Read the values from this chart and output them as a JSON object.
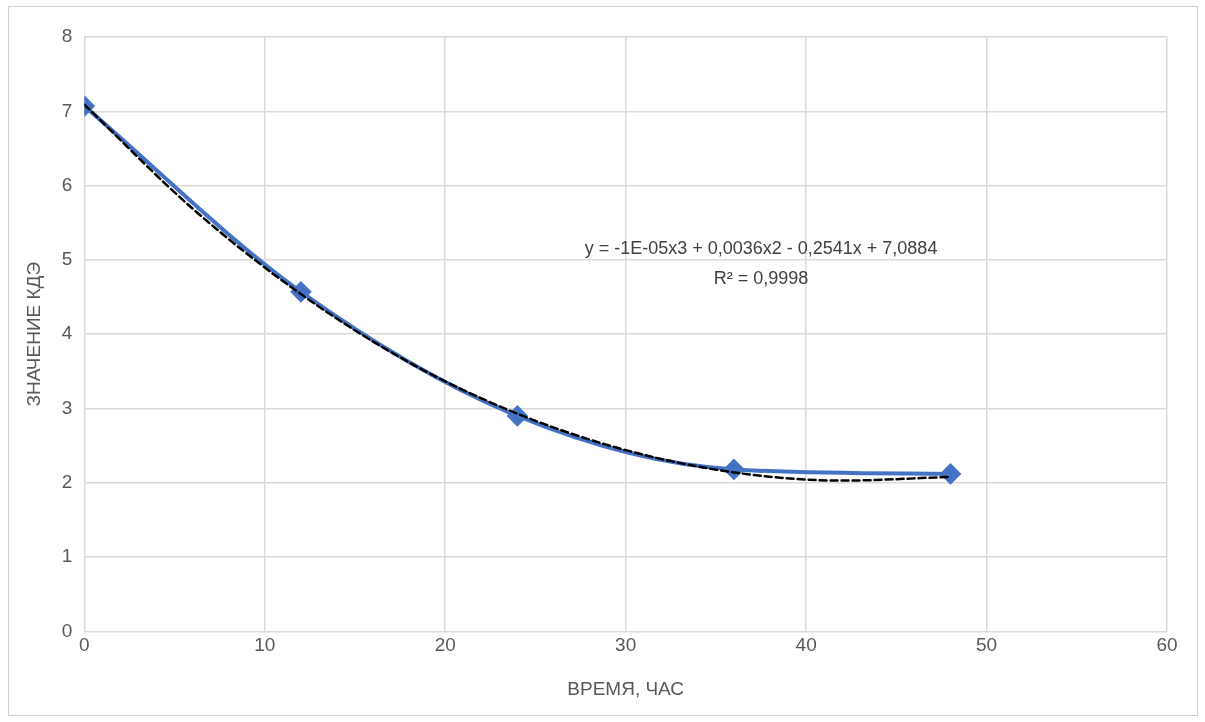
{
  "chart_data": {
    "type": "line",
    "xlabel": "ВРЕМЯ, ЧАС",
    "ylabel": "ЗНАЧЕНИЕ КДЭ",
    "x": [
      0,
      12,
      24,
      36,
      48
    ],
    "series": [
      {
        "color": "#4472c4",
        "values": [
          7.07,
          4.57,
          2.9,
          2.18,
          2.12
        ],
        "marker": "diamond",
        "line_style": "solid"
      },
      {
        "type": "line",
        "color": "#000000",
        "x": [
          0,
          6,
          12,
          18,
          24,
          30,
          36,
          42,
          48
        ],
        "values": [
          7.09,
          5.69,
          4.54,
          3.62,
          2.93,
          2.44,
          2.14,
          2.03,
          2.08
        ],
        "marker": "none",
        "line_style": "dashed"
      }
    ],
    "xlim": [
      0,
      60
    ],
    "xticks": [
      0,
      10,
      20,
      30,
      40,
      50,
      60
    ],
    "ylim": [
      0,
      8
    ],
    "yticks": [
      0,
      1,
      2,
      3,
      4,
      5,
      6,
      7,
      8
    ],
    "grid": true,
    "legend": false,
    "annotations": [
      "y = -1E-05x3 + 0,0036x2 - 0,2541x + 7,0884",
      "R² = 0,9998"
    ]
  }
}
